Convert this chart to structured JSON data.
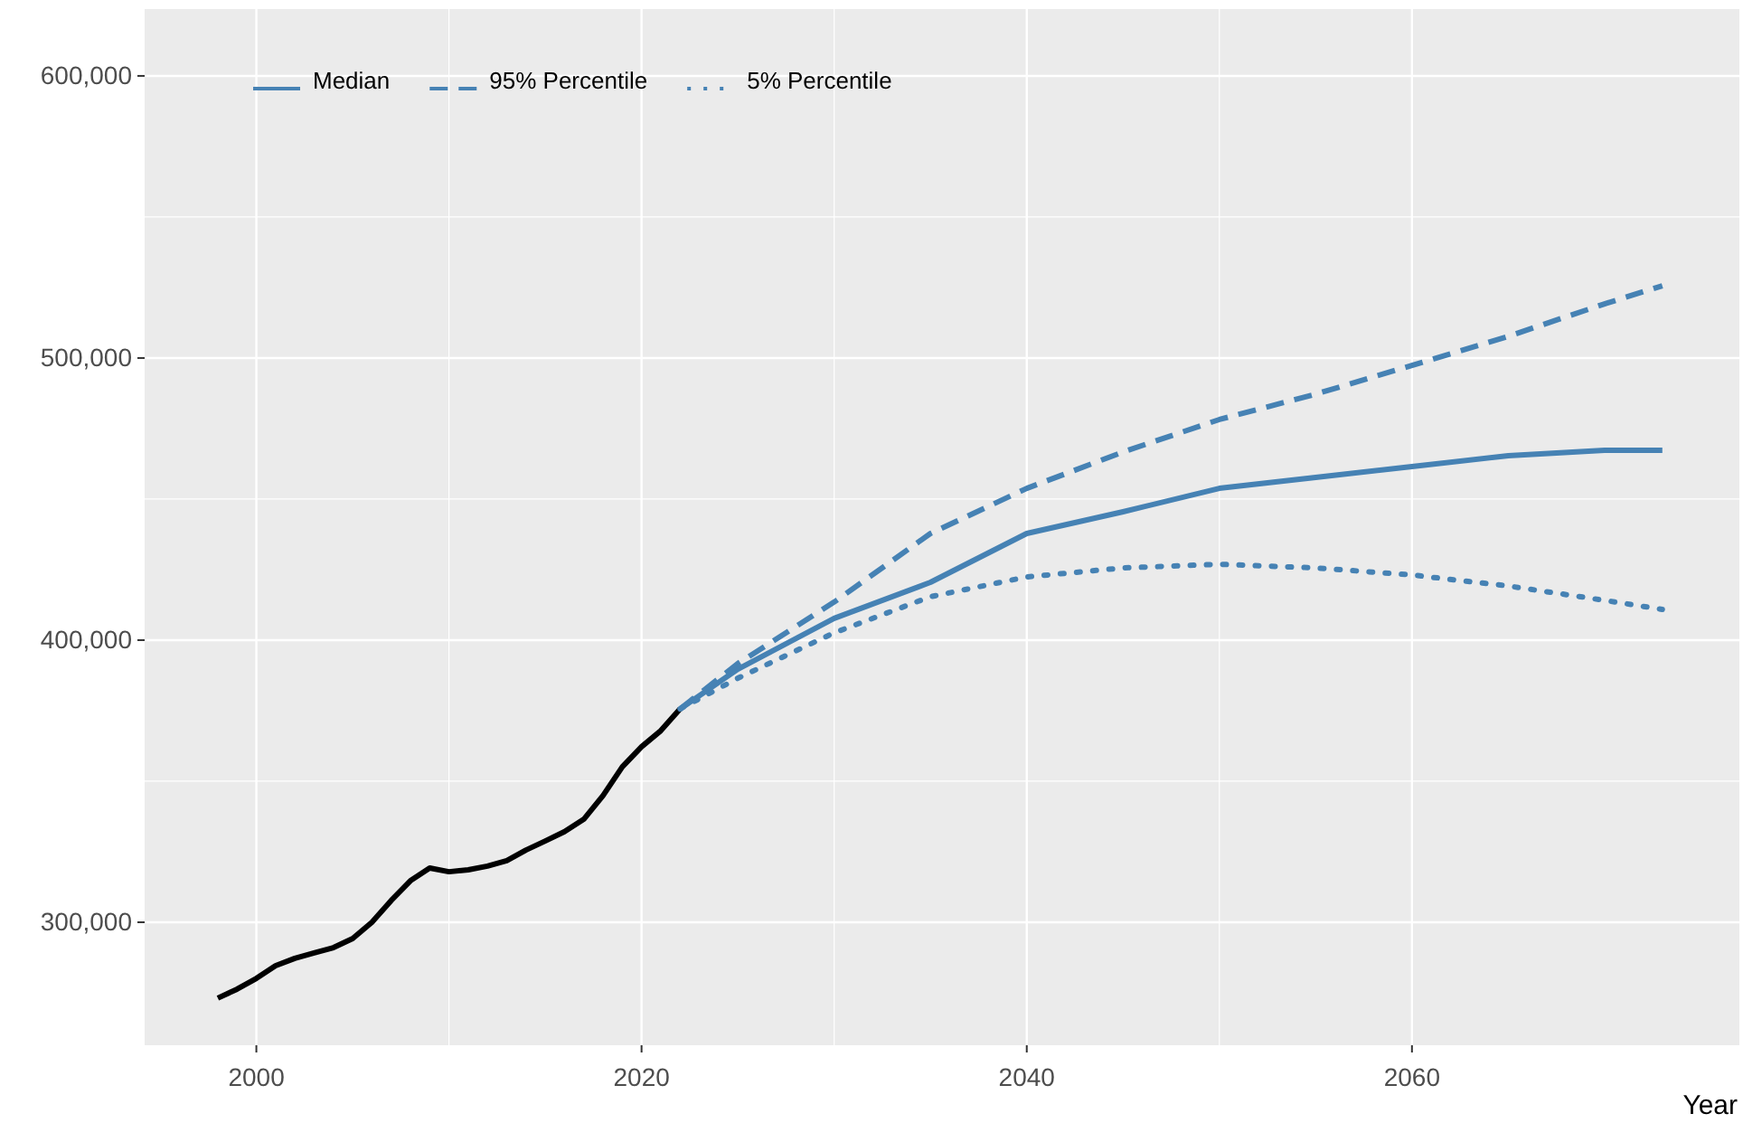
{
  "chart_data": {
    "type": "line",
    "xlabel": "Year",
    "xlim": [
      1994.2,
      2077
    ],
    "xticks": [
      2000,
      2020,
      2040,
      2060
    ],
    "ylim": [
      256400,
      623700
    ],
    "yticks": [
      {
        "value": 300000,
        "label": "300,000"
      },
      {
        "value": 400000,
        "label": "400,000"
      },
      {
        "value": 500000,
        "label": "500,000"
      },
      {
        "value": 600000,
        "label": "600,000"
      }
    ],
    "grid": true,
    "legend": "top left",
    "series": [
      {
        "color": "#000000",
        "line_style": "solid",
        "x": [
          1998,
          1999,
          2000,
          2001,
          2002,
          2003,
          2004,
          2005,
          2006,
          2007,
          2008,
          2009,
          2010,
          2011,
          2012,
          2013,
          2014,
          2015,
          2016,
          2017,
          2018,
          2019,
          2020,
          2021,
          2022
        ],
        "values": [
          273100,
          276300,
          280100,
          284600,
          287200,
          289100,
          291000,
          294200,
          300000,
          307700,
          314700,
          319200,
          317900,
          318600,
          319900,
          321800,
          325600,
          328800,
          332100,
          336500,
          344900,
          355100,
          362200,
          367900,
          375600
        ]
      },
      {
        "name": "Median",
        "color": "#4682b4",
        "line_style": "solid",
        "x": [
          2022,
          2025,
          2030,
          2035,
          2040,
          2045,
          2050,
          2055,
          2060,
          2065,
          2070,
          2073
        ],
        "values": [
          375600,
          389700,
          407700,
          420500,
          437800,
          445500,
          453800,
          457700,
          461500,
          465400,
          467300,
          467300
        ]
      },
      {
        "name": "95% Percentile",
        "color": "#4682b4",
        "line_style": "dashed",
        "x": [
          2022,
          2025,
          2030,
          2035,
          2040,
          2045,
          2050,
          2055,
          2060,
          2065,
          2070,
          2073
        ],
        "values": [
          375600,
          391700,
          413500,
          437800,
          453800,
          466700,
          478200,
          487200,
          497400,
          507700,
          519200,
          525600
        ]
      },
      {
        "name": "5% Percentile",
        "color": "#4682b4",
        "line_style": "dotted",
        "x": [
          2022,
          2025,
          2030,
          2035,
          2040,
          2045,
          2050,
          2055,
          2060,
          2065,
          2070,
          2073
        ],
        "values": [
          375600,
          386500,
          402600,
          415400,
          422400,
          425600,
          426900,
          425600,
          423100,
          419200,
          414100,
          410900
        ]
      }
    ]
  }
}
